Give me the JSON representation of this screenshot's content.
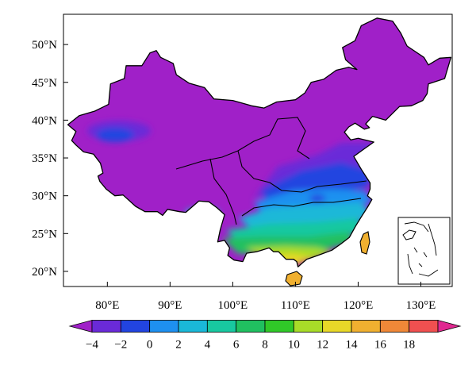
{
  "map": {
    "lat_ticks": [
      "50°N",
      "45°N",
      "40°N",
      "35°N",
      "30°N",
      "25°N",
      "20°N"
    ],
    "lat_values": [
      50,
      45,
      40,
      35,
      30,
      25,
      20
    ],
    "lon_ticks": [
      "80°E",
      "90°E",
      "100°E",
      "110°E",
      "120°E",
      "130°E"
    ],
    "lon_values": [
      80,
      90,
      100,
      110,
      120,
      130
    ],
    "lon_range": [
      73,
      135
    ],
    "lat_range": [
      18,
      54
    ],
    "has_inset": true
  },
  "colorbar": {
    "labels": [
      "−4",
      "−2",
      "0",
      "2",
      "4",
      "6",
      "8",
      "10",
      "12",
      "14",
      "16",
      "18"
    ],
    "colors": [
      "#a020c8",
      "#6a2ad8",
      "#2244e0",
      "#1e90f0",
      "#1ab8d8",
      "#18c8a0",
      "#20c060",
      "#30c828",
      "#a8dc28",
      "#e8d828",
      "#f0b030",
      "#f08838",
      "#f05050",
      "#e02890"
    ]
  }
}
